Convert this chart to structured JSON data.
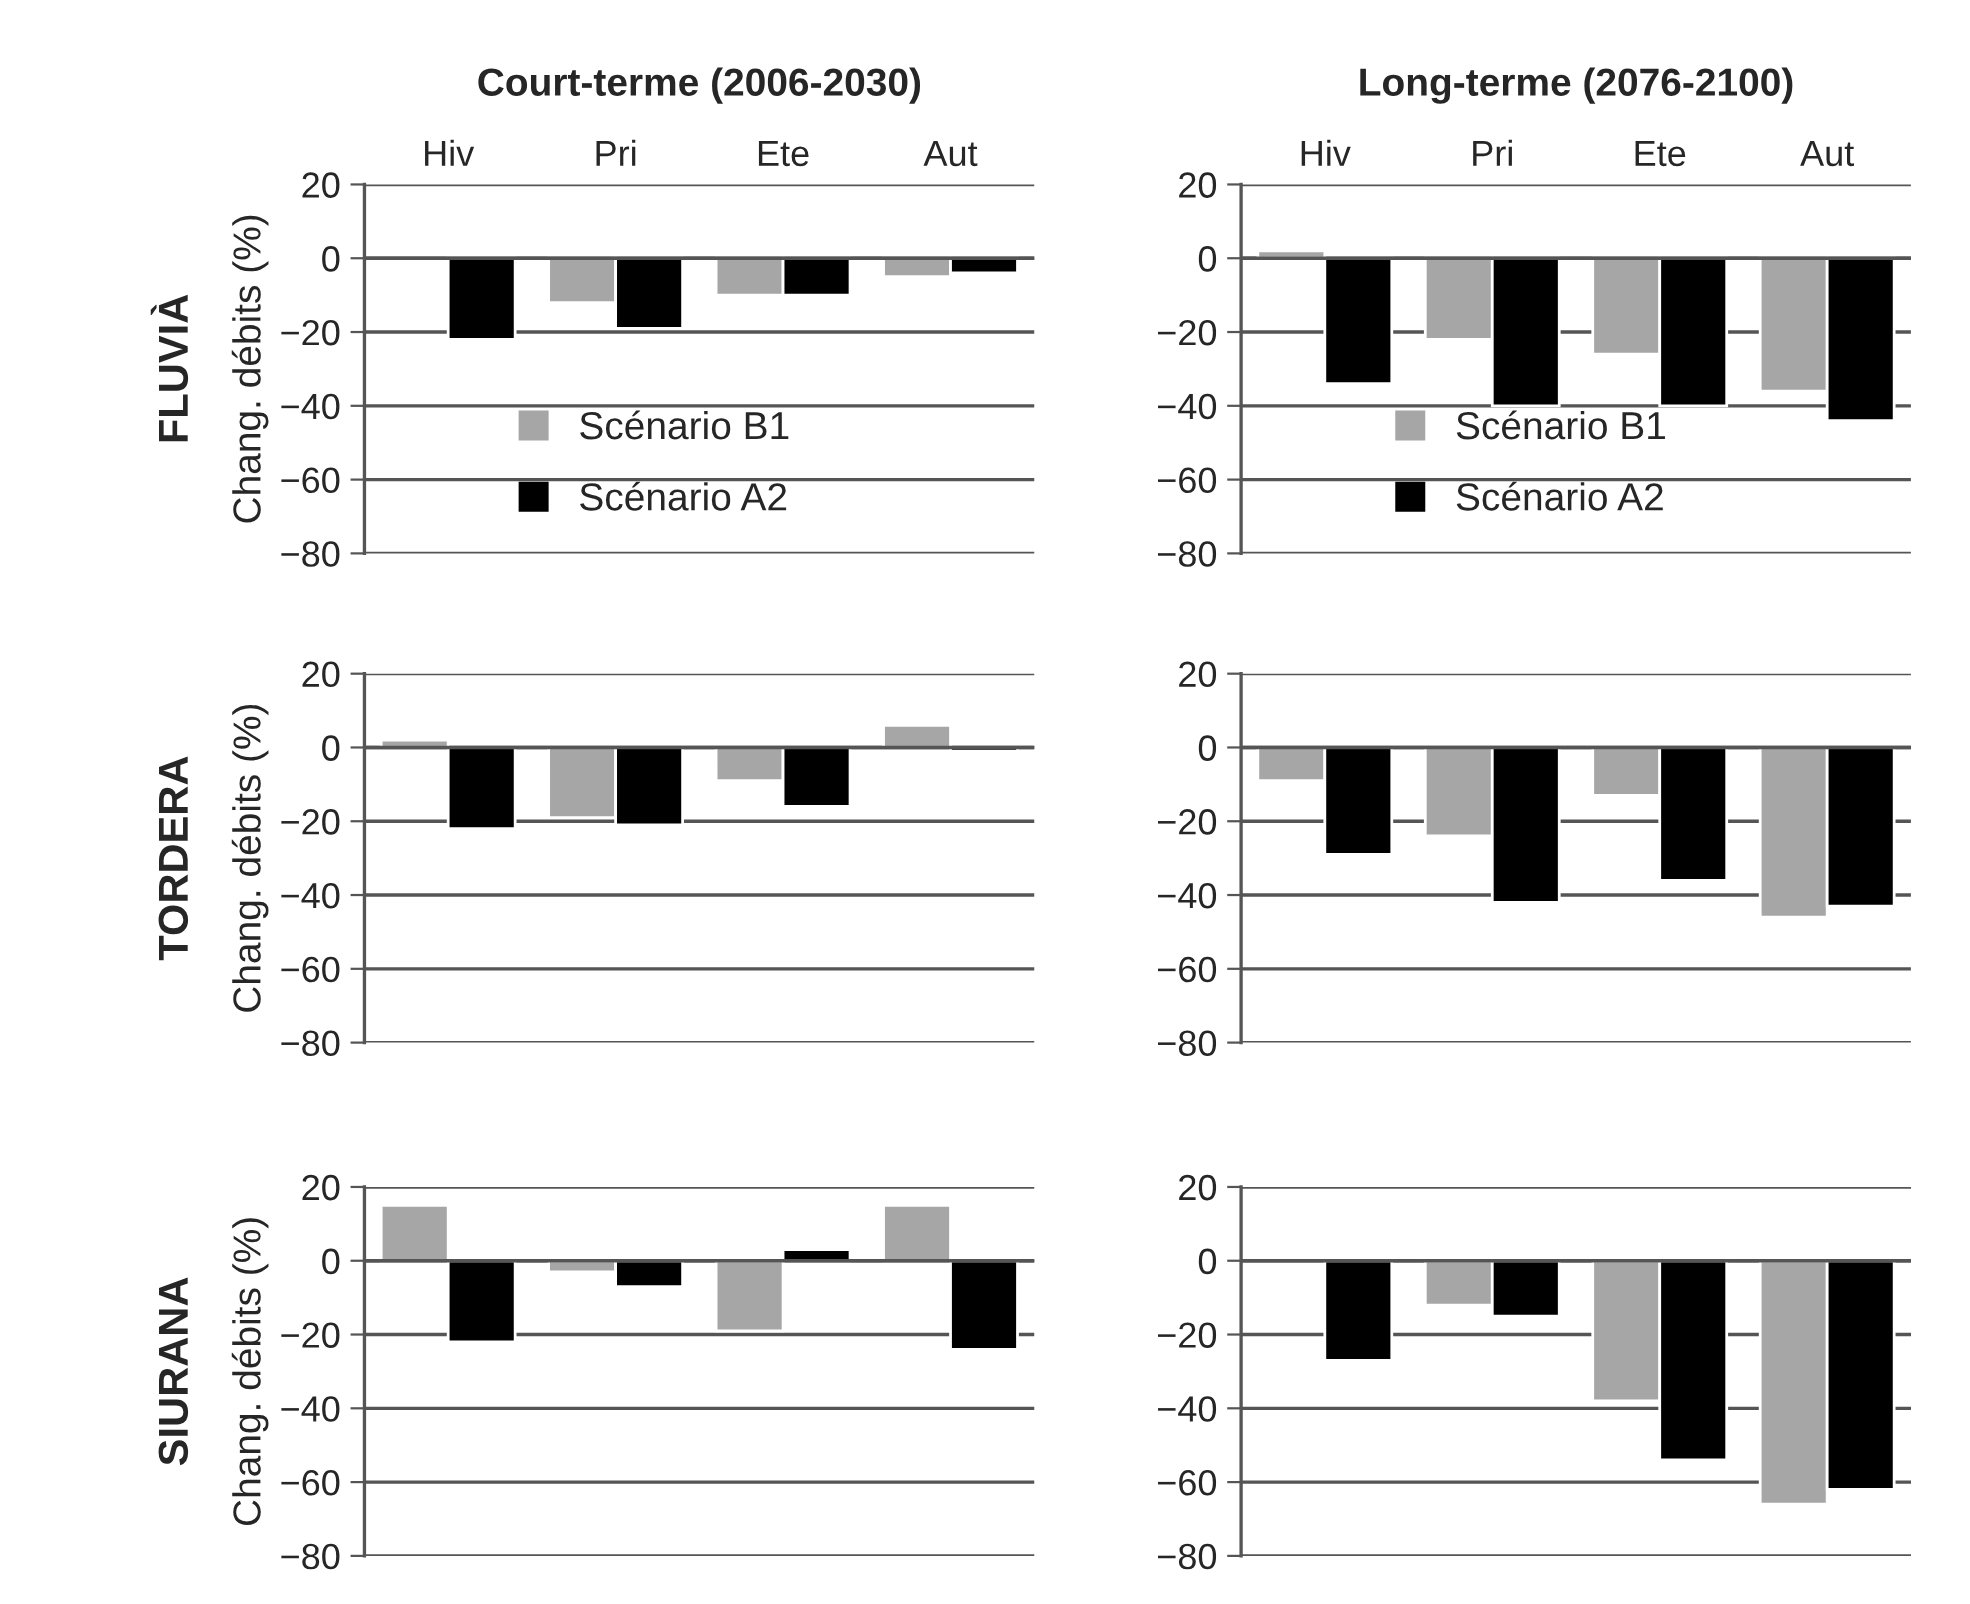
{
  "chart_data": [
    {
      "type": "bar",
      "title": "Court-terme (2006-2030)",
      "ylabel": "Chang. débits (%)",
      "annotations": [
        "FLUVIÀ"
      ],
      "categories": [
        "Hiv",
        "Pri",
        "Ete",
        "Aut"
      ],
      "ylim": [
        -80,
        20
      ],
      "yticks": [
        20,
        0,
        {
          "value": -20,
          "label": "−20"
        },
        {
          "value": -40,
          "label": "−40"
        },
        {
          "value": -60,
          "label": "−60"
        },
        {
          "value": -80,
          "label": "−80"
        }
      ],
      "grid": "y",
      "legend": "bottom left",
      "series": [
        {
          "name": "Scénario B1",
          "color": "#a6a6a6",
          "values": [
            null,
            -12,
            -10,
            -5
          ]
        },
        {
          "name": "Scénario A2",
          "color": "#000000",
          "values": [
            -22,
            -19,
            -10,
            -4
          ]
        }
      ]
    },
    {
      "type": "bar",
      "title": "Long-terme (2076-2100)",
      "categories": [
        "Hiv",
        "Pri",
        "Ete",
        "Aut"
      ],
      "ylim": [
        -80,
        20
      ],
      "yticks": [
        20,
        0,
        {
          "value": -20,
          "label": "−20"
        },
        {
          "value": -40,
          "label": "−40"
        },
        {
          "value": -60,
          "label": "−60"
        },
        {
          "value": -80,
          "label": "−80"
        }
      ],
      "grid": "y",
      "legend": "bottom left",
      "series": [
        {
          "name": "Scénario B1",
          "color": "#a6a6a6",
          "values": [
            2,
            -22,
            -26,
            -36
          ]
        },
        {
          "name": "Scénario A2",
          "color": "#000000",
          "values": [
            -34,
            -40,
            -40,
            -44
          ]
        }
      ]
    },
    {
      "type": "bar",
      "ylabel": "Chang. débits (%)",
      "annotations": [
        "TORDERA"
      ],
      "categories": [
        null,
        null,
        null,
        null
      ],
      "ylim": [
        -80,
        20
      ],
      "yticks": [
        20,
        0,
        {
          "value": -20,
          "label": "−20"
        },
        {
          "value": -40,
          "label": "−40"
        },
        {
          "value": -60,
          "label": "−60"
        },
        {
          "value": -80,
          "label": "−80"
        }
      ],
      "grid": "y",
      "tick_labels": "y",
      "series": [
        {
          "color": "#a6a6a6",
          "values": [
            2,
            -19,
            -9,
            6
          ]
        },
        {
          "color": "#000000",
          "values": [
            -22,
            -21,
            -16,
            -1
          ]
        }
      ]
    },
    {
      "type": "bar",
      "categories": [
        null,
        null,
        null,
        null
      ],
      "ylim": [
        -80,
        20
      ],
      "yticks": [
        20,
        0,
        {
          "value": -20,
          "label": "−20"
        },
        {
          "value": -40,
          "label": "−40"
        },
        {
          "value": -60,
          "label": "−60"
        },
        {
          "value": -80,
          "label": "−80"
        }
      ],
      "grid": "y",
      "tick_labels": "y",
      "series": [
        {
          "color": "#a6a6a6",
          "values": [
            -9,
            -24,
            -13,
            -46
          ]
        },
        {
          "color": "#000000",
          "values": [
            -29,
            -42,
            -36,
            -43
          ]
        }
      ]
    },
    {
      "type": "bar",
      "ylabel": "Chang. débits (%)",
      "annotations": [
        "SIURANA"
      ],
      "categories": [
        null,
        null,
        null,
        null
      ],
      "ylim": [
        -80,
        20
      ],
      "yticks": [
        20,
        0,
        {
          "value": -20,
          "label": "−20"
        },
        {
          "value": -40,
          "label": "−40"
        },
        {
          "value": -60,
          "label": "−60"
        },
        {
          "value": -80,
          "label": "−80"
        }
      ],
      "grid": "y",
      "tick_labels": "y",
      "series": [
        {
          "color": "#a6a6a6",
          "values": [
            15,
            -3,
            -19,
            15
          ]
        },
        {
          "color": "#000000",
          "values": [
            -22,
            -7,
            3,
            -24
          ]
        }
      ]
    },
    {
      "type": "bar",
      "categories": [
        null,
        null,
        null,
        null
      ],
      "ylim": [
        -80,
        20
      ],
      "yticks": [
        20,
        0,
        {
          "value": -20,
          "label": "−20"
        },
        {
          "value": -40,
          "label": "−40"
        },
        {
          "value": -60,
          "label": "−60"
        },
        {
          "value": -80,
          "label": "−80"
        }
      ],
      "grid": "y",
      "tick_labels": "y",
      "series": [
        {
          "color": "#a6a6a6",
          "values": [
            null,
            -12,
            -38,
            -66
          ]
        },
        {
          "color": "#000000",
          "values": [
            -27,
            -15,
            -54,
            -62
          ]
        }
      ]
    }
  ]
}
